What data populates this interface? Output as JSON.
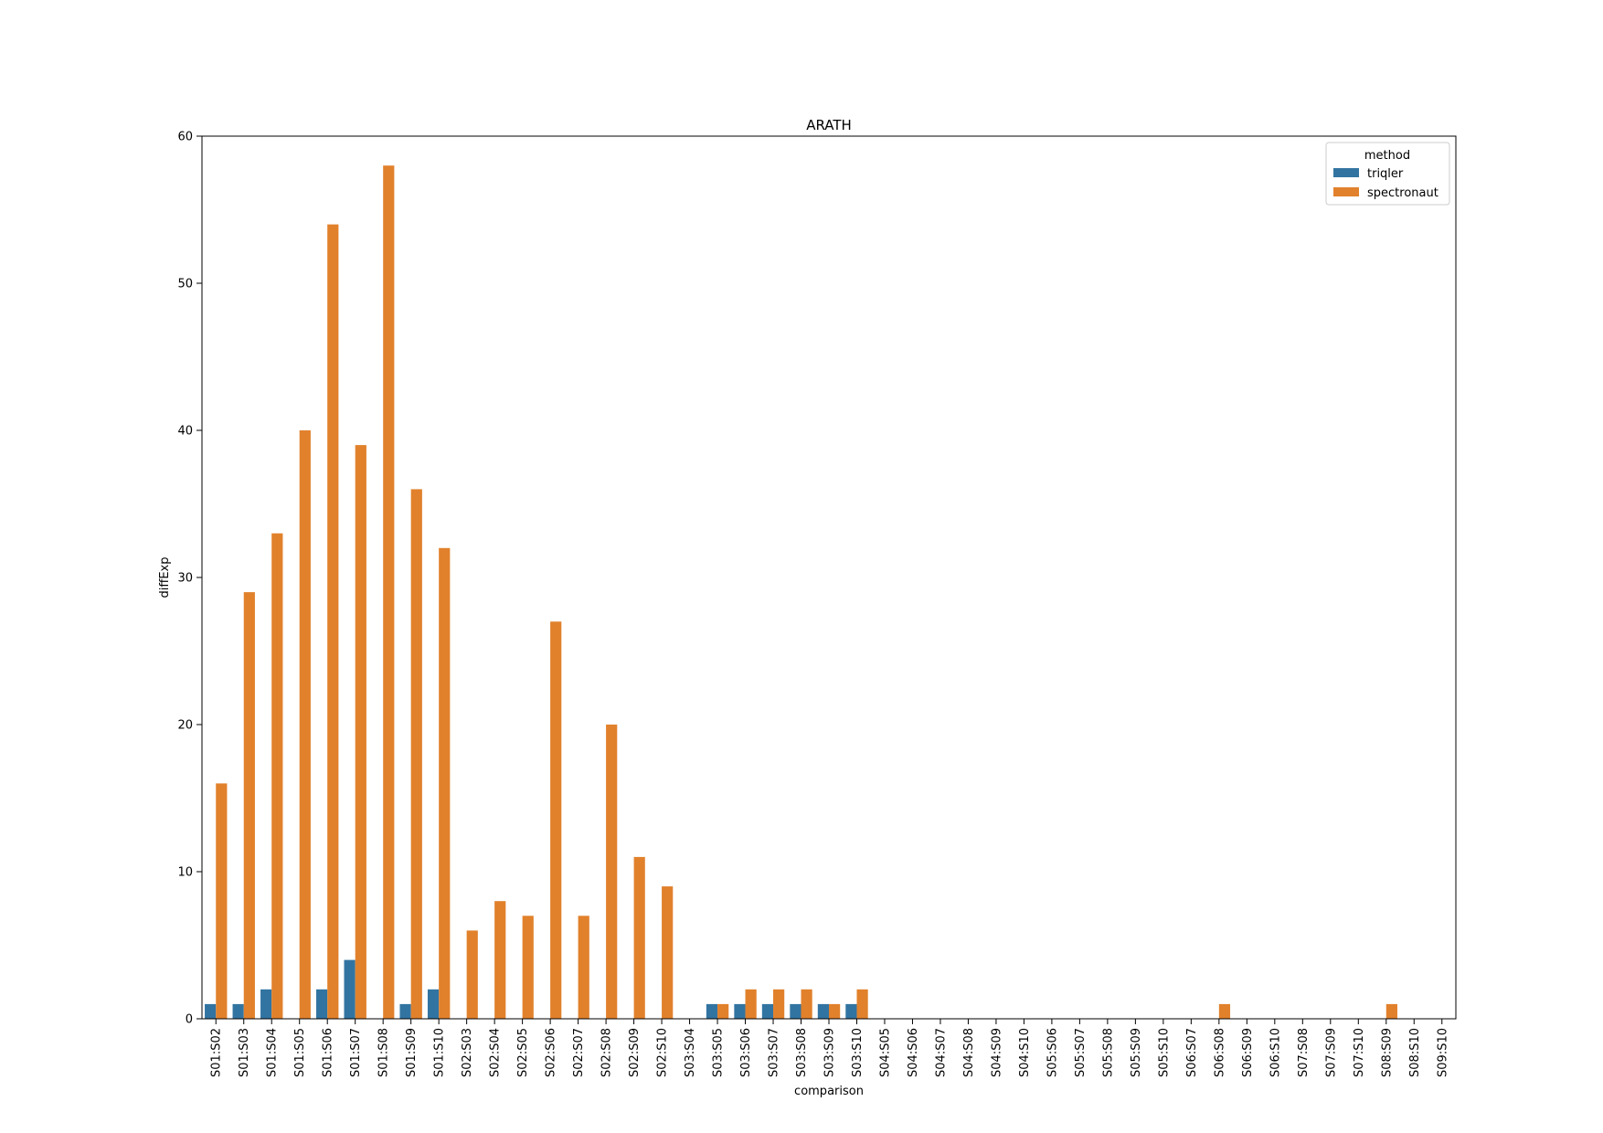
{
  "chart_data": {
    "type": "bar",
    "title": "ARATH",
    "xlabel": "comparison",
    "ylabel": "diffExp",
    "ylim": [
      0,
      60
    ],
    "yticks": [
      0,
      10,
      20,
      30,
      40,
      50,
      60
    ],
    "grid": false,
    "legend": {
      "title": "method",
      "position": "top-right"
    },
    "categories": [
      "S01:S02",
      "S01:S03",
      "S01:S04",
      "S01:S05",
      "S01:S06",
      "S01:S07",
      "S01:S08",
      "S01:S09",
      "S01:S10",
      "S02:S03",
      "S02:S04",
      "S02:S05",
      "S02:S06",
      "S02:S07",
      "S02:S08",
      "S02:S09",
      "S02:S10",
      "S03:S04",
      "S03:S05",
      "S03:S06",
      "S03:S07",
      "S03:S08",
      "S03:S09",
      "S03:S10",
      "S04:S05",
      "S04:S06",
      "S04:S07",
      "S04:S08",
      "S04:S09",
      "S04:S10",
      "S05:S06",
      "S05:S07",
      "S05:S08",
      "S05:S09",
      "S05:S10",
      "S06:S07",
      "S06:S08",
      "S06:S09",
      "S06:S10",
      "S07:S08",
      "S07:S09",
      "S07:S10",
      "S08:S09",
      "S08:S10",
      "S09:S10"
    ],
    "series": [
      {
        "name": "triqler",
        "color": "#3274a1",
        "values": [
          1,
          1,
          2,
          0,
          2,
          4,
          0,
          1,
          2,
          0,
          0,
          0,
          0,
          0,
          0,
          0,
          0,
          0,
          1,
          1,
          1,
          1,
          1,
          1,
          0,
          0,
          0,
          0,
          0,
          0,
          0,
          0,
          0,
          0,
          0,
          0,
          0,
          0,
          0,
          0,
          0,
          0,
          0,
          0,
          0
        ]
      },
      {
        "name": "spectronaut",
        "color": "#e1812c",
        "values": [
          16,
          29,
          33,
          40,
          54,
          39,
          58,
          36,
          32,
          6,
          8,
          7,
          27,
          7,
          20,
          11,
          9,
          0,
          1,
          2,
          2,
          2,
          1,
          2,
          0,
          0,
          0,
          0,
          0,
          0,
          0,
          0,
          0,
          0,
          0,
          0,
          1,
          0,
          0,
          0,
          0,
          0,
          1,
          0,
          0
        ]
      }
    ]
  }
}
